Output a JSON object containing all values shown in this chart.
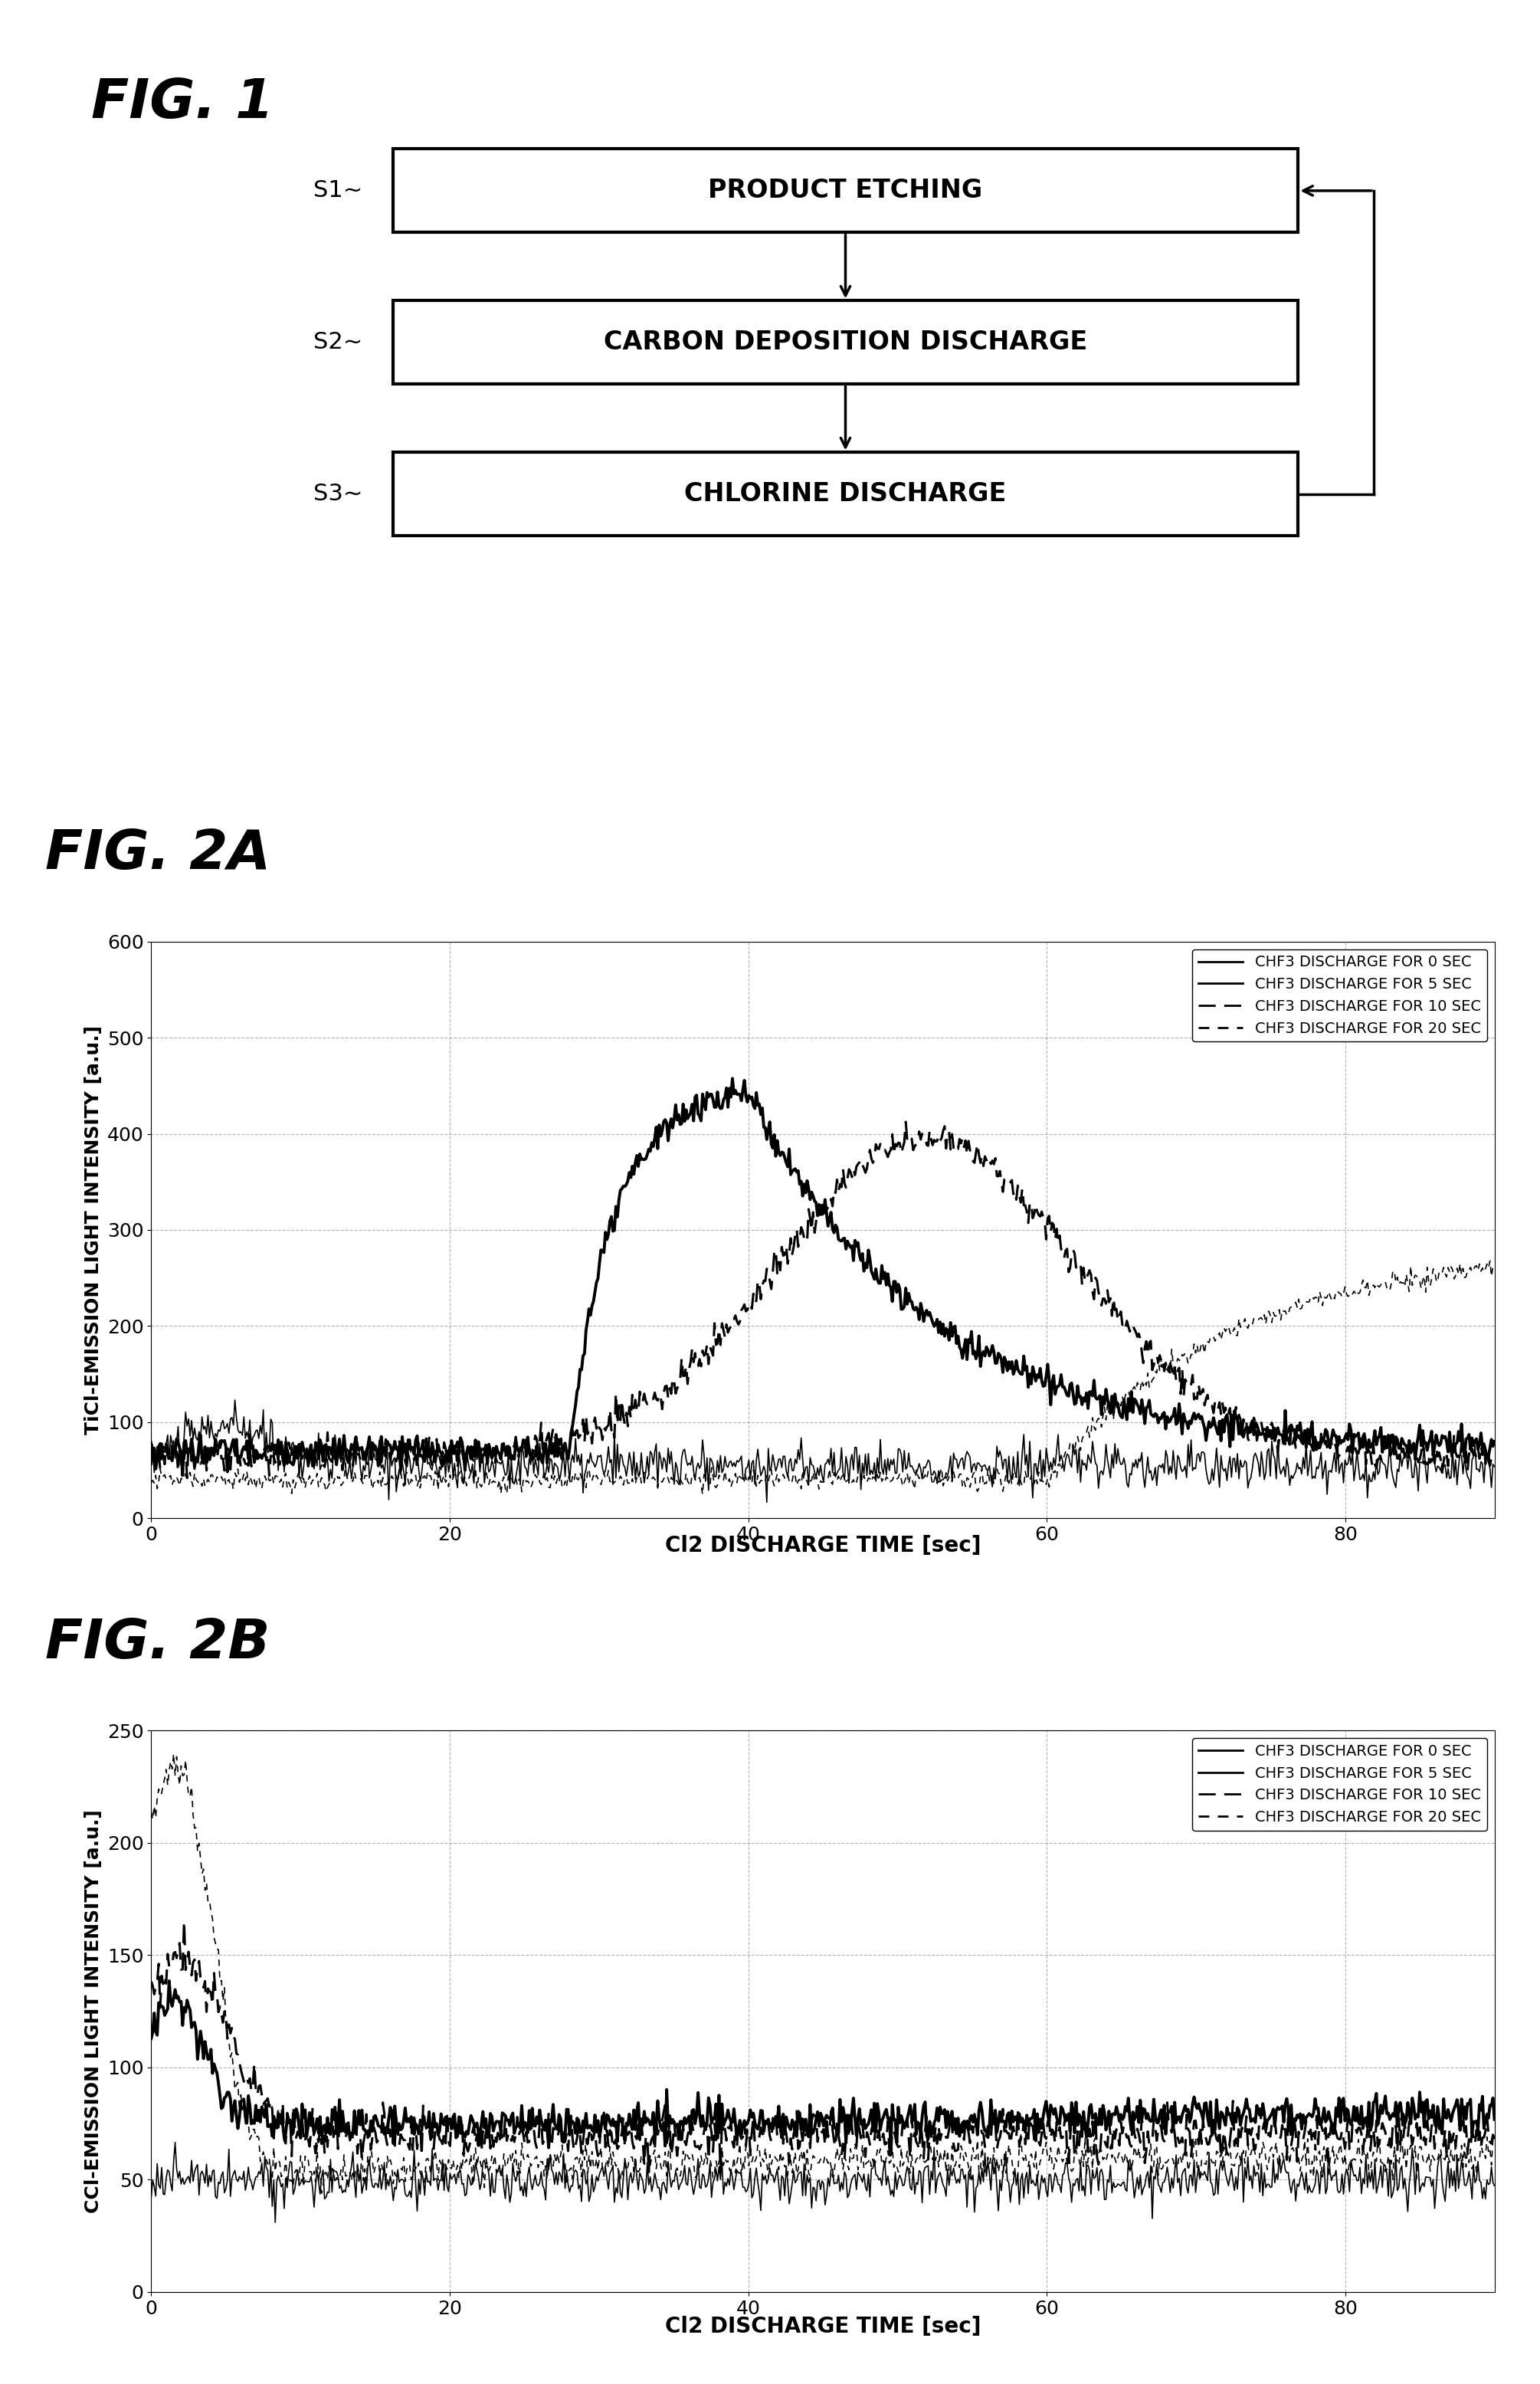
{
  "fig1_title": "FIG. 1",
  "fig2a_title": "FIG. 2A",
  "fig2b_title": "FIG. 2B",
  "flowchart": {
    "steps": [
      "PRODUCT ETCHING",
      "CARBON DEPOSITION DISCHARGE",
      "CHLORINE DISCHARGE"
    ],
    "labels": [
      "S1",
      "S2",
      "S3"
    ]
  },
  "fig2a": {
    "ylabel": "TiCl-EMISSION LIGHT INTENSITY [a.u.]",
    "xlabel": "Cl2 DISCHARGE TIME [sec]",
    "ylim": [
      0,
      600
    ],
    "xlim": [
      0,
      90
    ],
    "yticks": [
      0,
      100,
      200,
      300,
      400,
      500,
      600
    ],
    "xticks": [
      0,
      20,
      40,
      60,
      80
    ],
    "legend": [
      "CHF3 DISCHARGE FOR 0 SEC",
      "CHF3 DISCHARGE FOR 5 SEC",
      "CHF3 DISCHARGE FOR 10 SEC",
      "CHF3 DISCHARGE FOR 20 SEC"
    ]
  },
  "fig2b": {
    "ylabel": "CCl-EMISSION LIGHT INTENSITY [a.u.]",
    "xlabel": "Cl2 DISCHARGE TIME [sec]",
    "ylim": [
      0,
      250
    ],
    "xlim": [
      0,
      90
    ],
    "yticks": [
      0,
      50,
      100,
      150,
      200,
      250
    ],
    "xticks": [
      0,
      20,
      40,
      60,
      80
    ],
    "legend": [
      "CHF3 DISCHARGE FOR 0 SEC",
      "CHF3 DISCHARGE FOR 5 SEC",
      "CHF3 DISCHARGE FOR 10 SEC",
      "CHF3 DISCHARGE FOR 20 SEC"
    ]
  },
  "background_color": "#ffffff",
  "line_color": "#000000"
}
